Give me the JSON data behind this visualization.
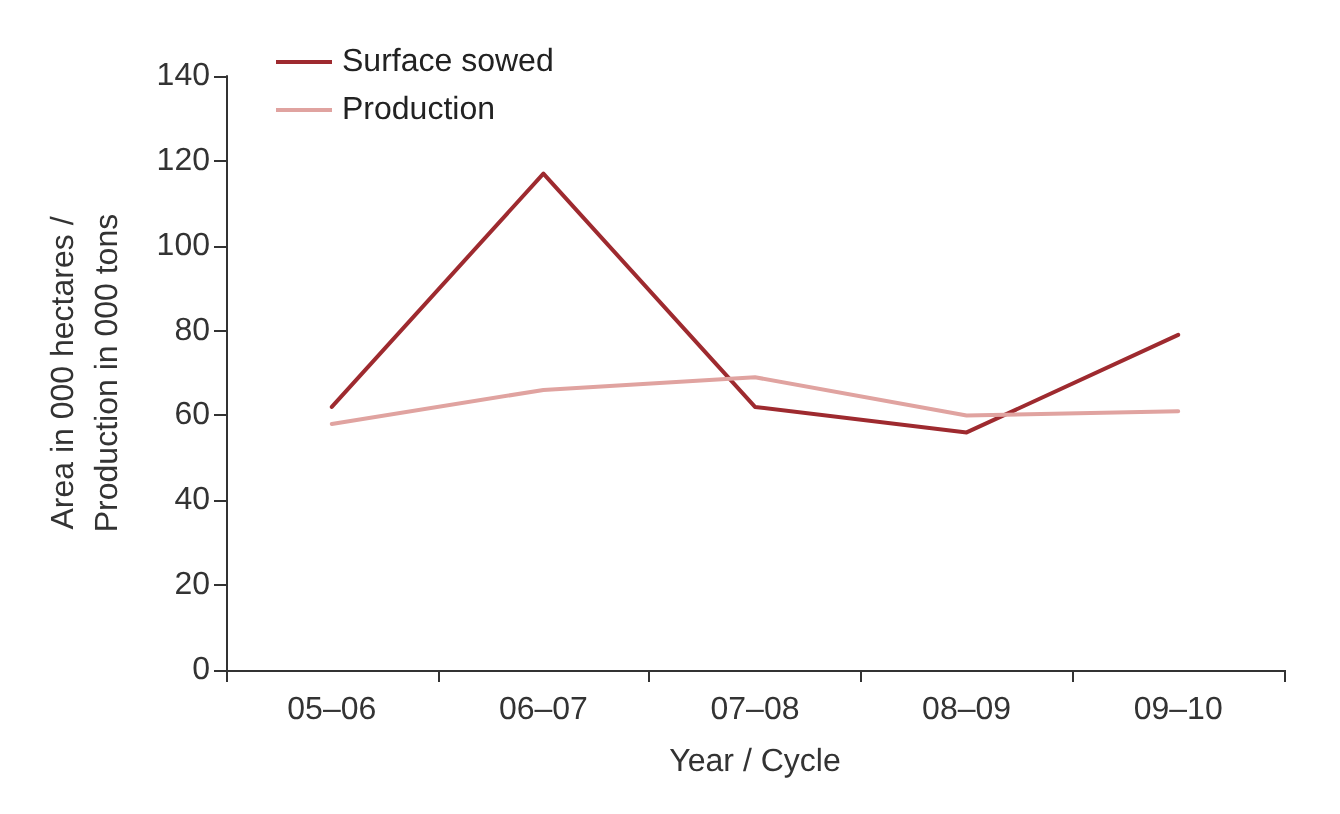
{
  "chart_data": {
    "type": "line",
    "xlabel": "Year / Cycle",
    "ylabel": "Area in 000 hectares /\nProduction in 000 tons",
    "categories": [
      "05–06",
      "06–07",
      "07–08",
      "08–09",
      "09–10"
    ],
    "series": [
      {
        "name": "Surface sowed",
        "color": "#9e2a2f",
        "values": [
          62,
          117,
          62,
          56,
          79
        ]
      },
      {
        "name": "Production",
        "color": "#e0a3a0",
        "values": [
          58,
          66,
          69,
          60,
          61
        ]
      }
    ],
    "ylim": [
      0,
      140
    ],
    "yticks": [
      0,
      20,
      40,
      60,
      80,
      100,
      120,
      140
    ],
    "grid": false,
    "legend": "top left",
    "marker": "none",
    "line_style": "solid"
  }
}
